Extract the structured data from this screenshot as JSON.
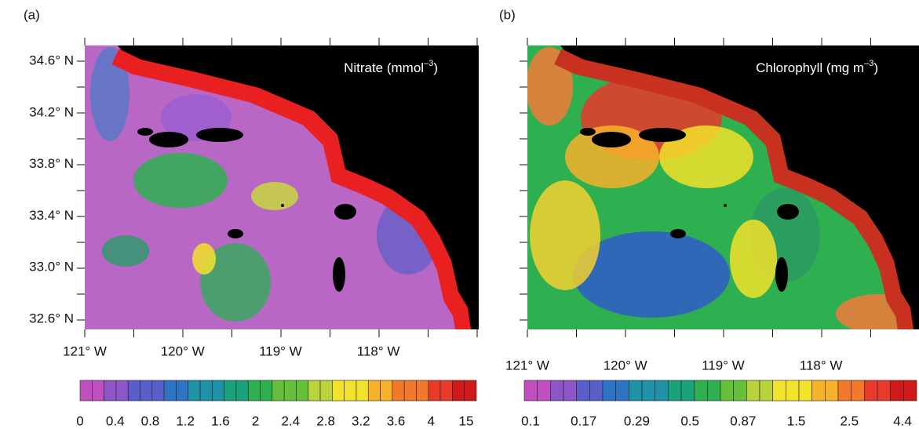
{
  "panels": [
    {
      "label": "(a)",
      "title": {
        "main": "Nitrate (mmol",
        "sup": "–3",
        "end": ")"
      },
      "y_labels": [
        "34.6° N",
        "34.2° N",
        "33.8° N",
        "33.4° N",
        "33.0° N",
        "32.6° N"
      ],
      "x_labels": [
        "121° W",
        "120° W",
        "119° W",
        "118° W"
      ],
      "colorbar_labels": [
        "0",
        "0.4",
        "0.8",
        "1.2",
        "1.6",
        "2",
        "2.4",
        "2.8",
        "3.2",
        "3.6",
        "4",
        "15"
      ]
    },
    {
      "label": "(b)",
      "title": {
        "main": "Chlorophyll (mg m",
        "sup": "–3",
        "end": ")"
      },
      "x_labels": [
        "121° W",
        "120° W",
        "119° W",
        "118° W"
      ],
      "colorbar_labels": [
        "0.1",
        "0.17",
        "0.29",
        "0.5",
        "0.87",
        "1.5",
        "2.5",
        "4.4"
      ]
    }
  ]
}
